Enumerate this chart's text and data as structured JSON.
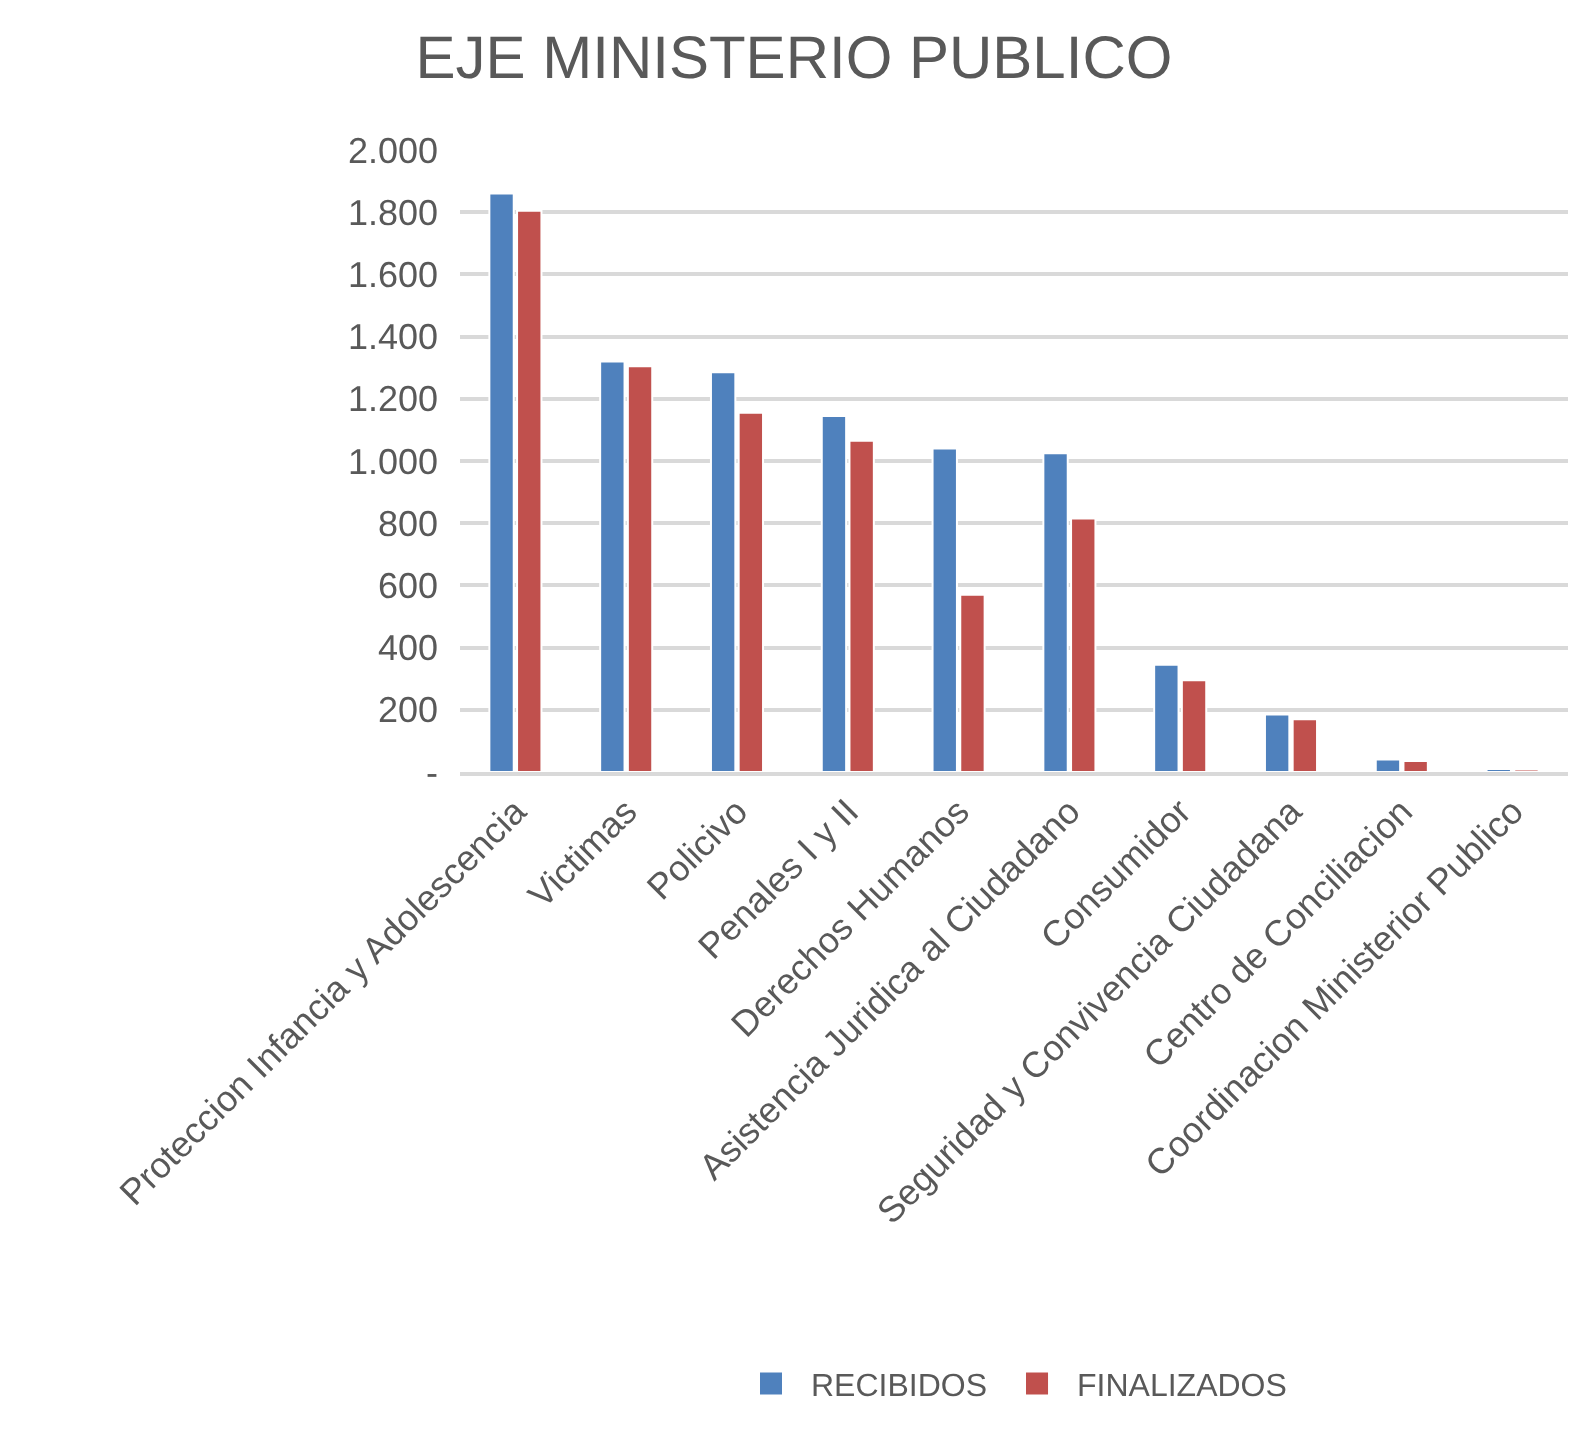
{
  "chart_data": {
    "type": "bar",
    "title": "EJE MINISTERIO PUBLICO",
    "categories": [
      "Proteccion Infancia y Adolescencia",
      "Victimas",
      "Policivo",
      "Penales I y II",
      "Derechos Humanos",
      "Asistencia Juridica al Ciudadano",
      "Consumidor",
      "Seguridad y Convivencia Ciudadana",
      "Centro de Conciliacion",
      "Coordinacion Ministerior Publico"
    ],
    "series": [
      {
        "name": "RECIBIDOS",
        "color": "#4f81bd",
        "values": [
          1860,
          1320,
          1285,
          1145,
          1040,
          1025,
          345,
          185,
          40,
          10
        ]
      },
      {
        "name": "FINALIZADOS",
        "color": "#c0504d",
        "values": [
          1805,
          1305,
          1155,
          1065,
          570,
          815,
          295,
          170,
          35,
          8
        ]
      }
    ],
    "ylim": [
      0,
      2000
    ],
    "yticks": [
      {
        "value": 0,
        "label": "-"
      },
      {
        "value": 200,
        "label": "200"
      },
      {
        "value": 400,
        "label": "400"
      },
      {
        "value": 600,
        "label": "600"
      },
      {
        "value": 800,
        "label": "800"
      },
      {
        "value": 1000,
        "label": "1.000"
      },
      {
        "value": 1200,
        "label": "1.200"
      },
      {
        "value": 1400,
        "label": "1.400"
      },
      {
        "value": 1600,
        "label": "1.600"
      },
      {
        "value": 1800,
        "label": "1.800"
      },
      {
        "value": 2000,
        "label": "2.000"
      }
    ],
    "grid": "y",
    "legend": "bottom"
  }
}
